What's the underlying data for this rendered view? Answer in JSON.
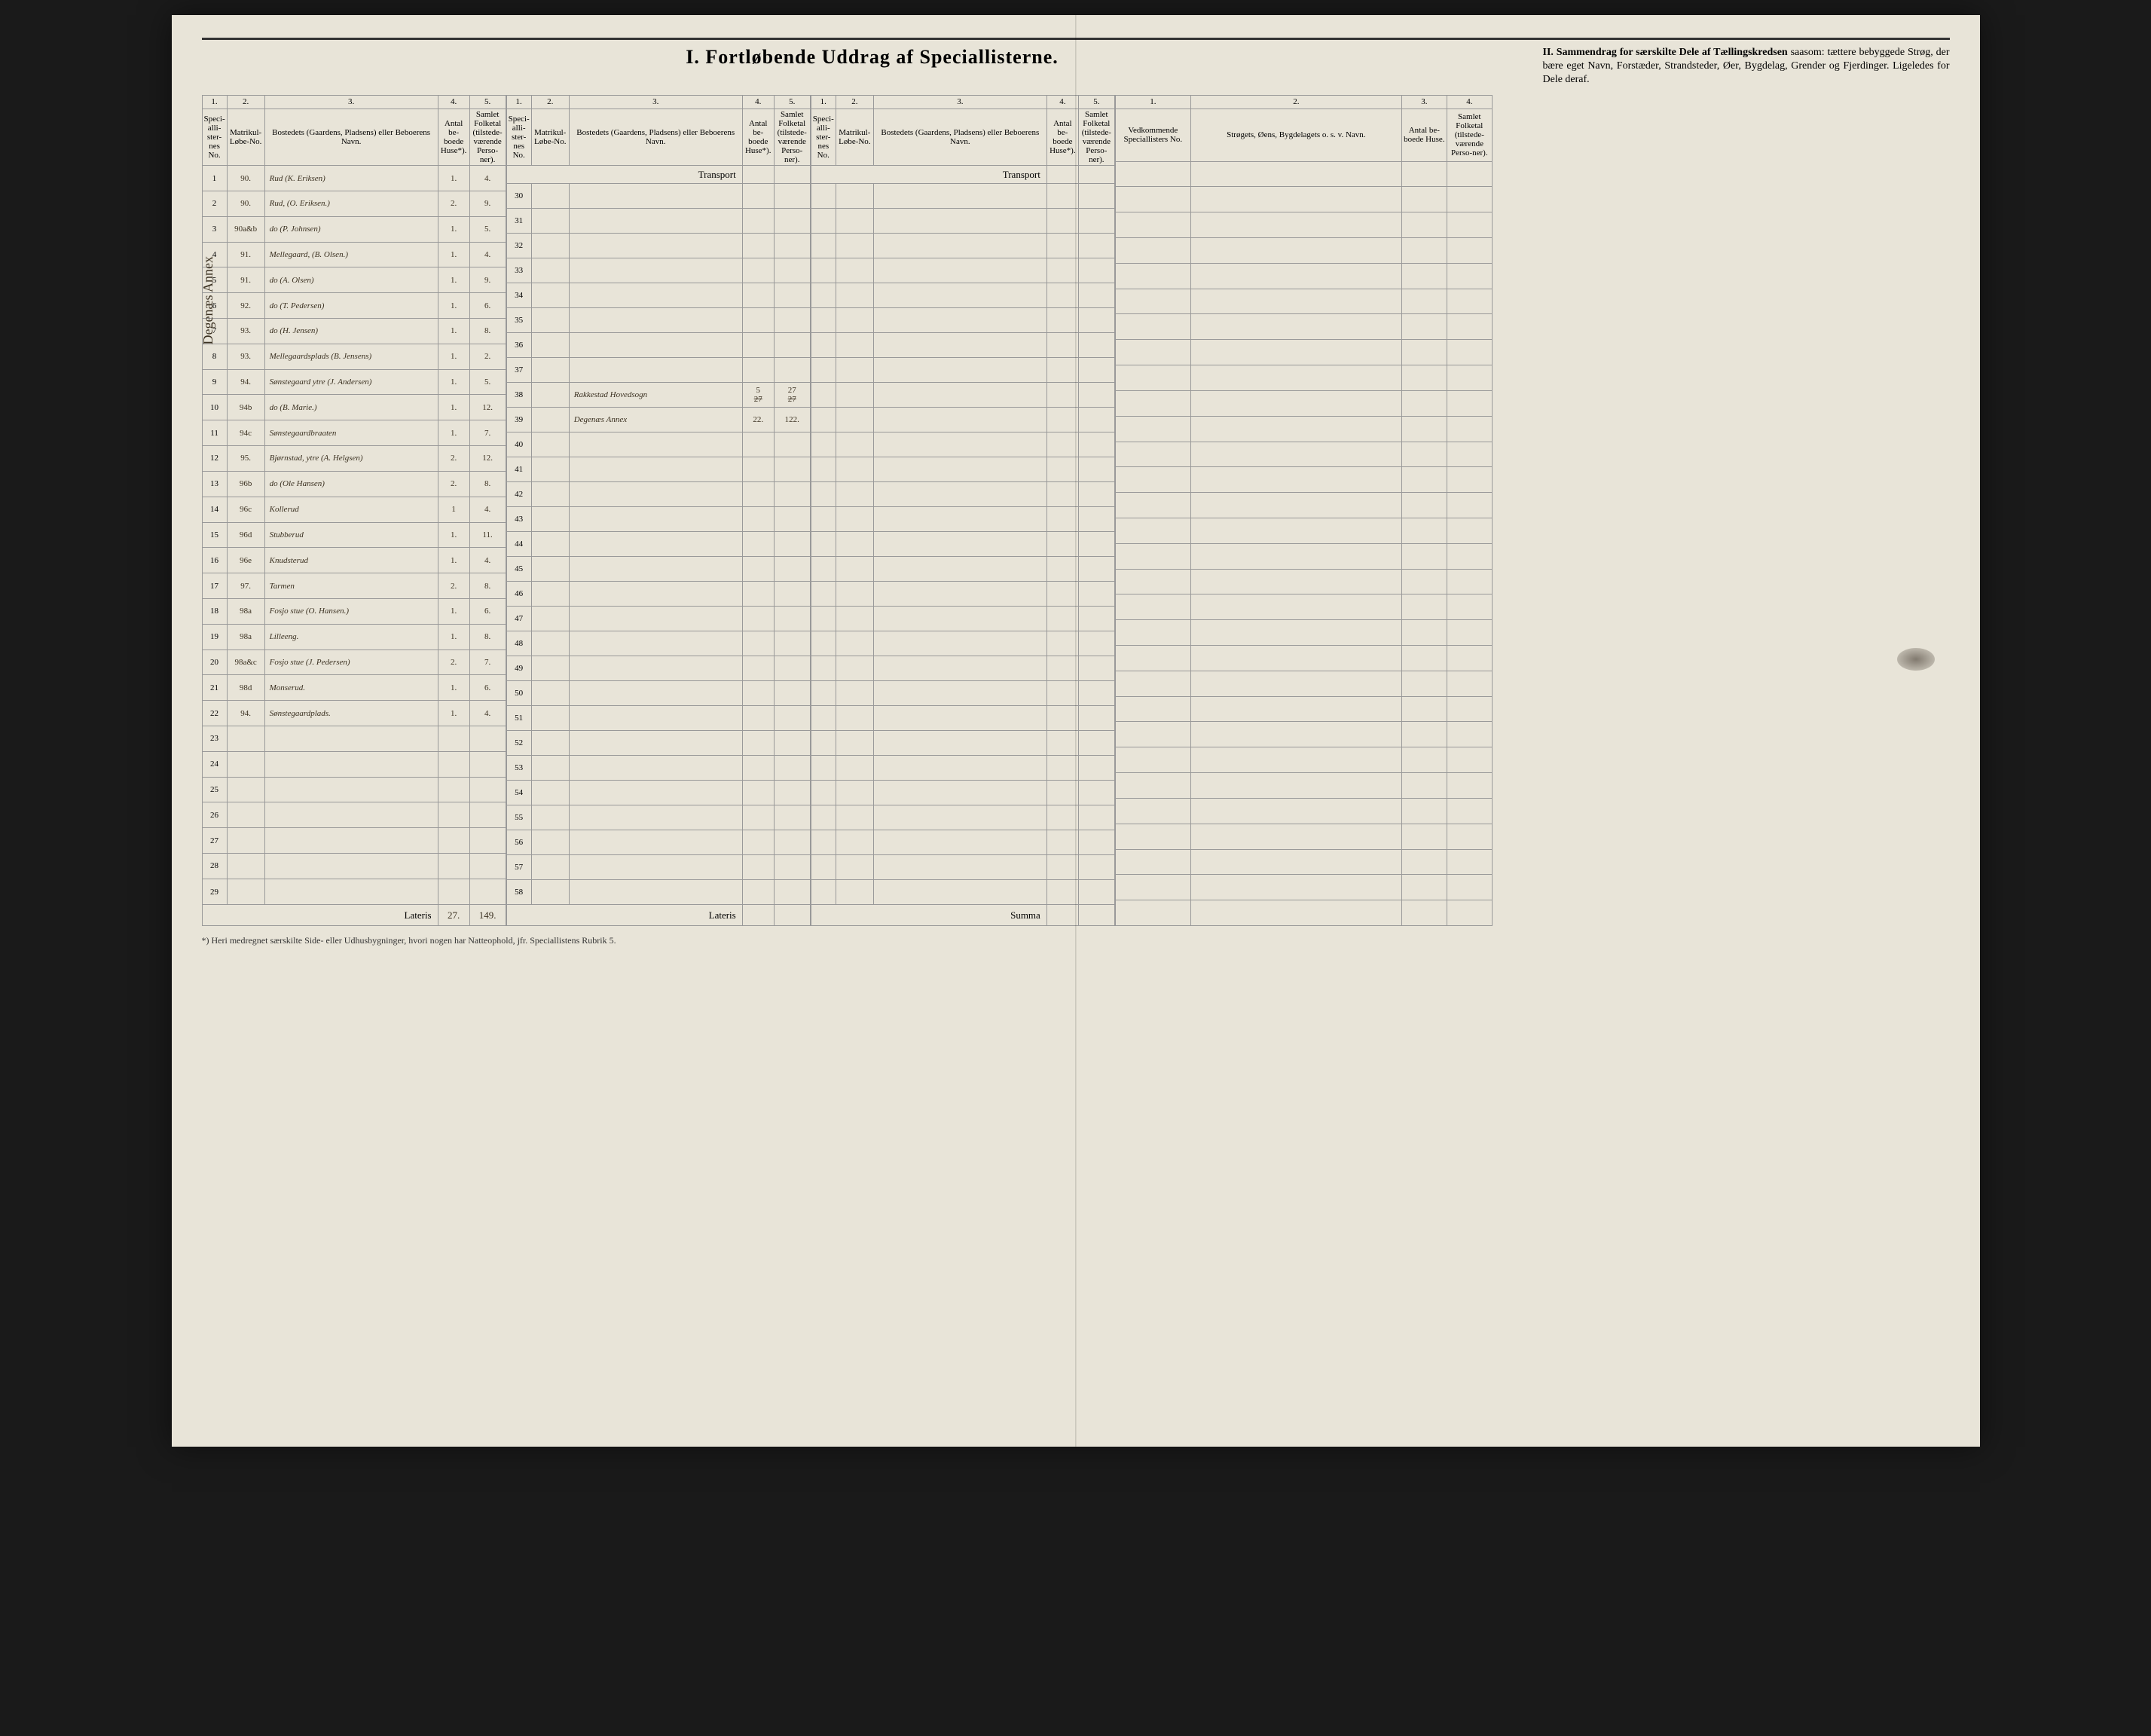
{
  "titles": {
    "main": "I.   Fortløbende Uddrag af   Speciallisterne.",
    "sectionII_bold": "II.   Sammendrag for særskilte Dele af Tællingskredsen",
    "sectionII_rest": " saasom: tættere bebyggede Strøg, der bære eget Navn, Forstæder, Strandsteder, Øer, Bygdelag, Grender og Fjerdinger. Ligeledes for Dele deraf."
  },
  "columnNumbers": [
    "1.",
    "2.",
    "3.",
    "4.",
    "5."
  ],
  "columnHeaders": {
    "c1": "Speci-alli-ster-nes No.",
    "c2": "Matrikul-Løbe-No.",
    "c3": "Bostedets (Gaardens, Pladsens) eller Beboerens Navn.",
    "c4": "Antal be-boede Huse*).",
    "c5": "Samlet Folketal (tilstede-værende Perso-ner)."
  },
  "sectionII_cols": {
    "nums": [
      "1.",
      "2.",
      "3.",
      "4."
    ],
    "h1": "Vedkommende Speciallisters No.",
    "h2": "Strøgets, Øens, Bygdelagets o. s. v. Navn.",
    "h3": "Antal be-boede Huse.",
    "h4": "Samlet Folketal (tilstede-værende Perso-ner)."
  },
  "labels": {
    "transport": "Transport",
    "lateris": "Lateris",
    "summa": "Summa"
  },
  "rowsA": [
    {
      "n": "1",
      "m": "90.",
      "b": "Rud (K. Eriksen)",
      "h": "1.",
      "f": "4."
    },
    {
      "n": "2",
      "m": "90.",
      "b": "Rud, (O. Eriksen.)",
      "h": "2.",
      "f": "9."
    },
    {
      "n": "3",
      "m": "90a&b",
      "b": "do   (P. Johnsen)",
      "h": "1.",
      "f": "5."
    },
    {
      "n": "4",
      "m": "91.",
      "b": "Mellegaard, (B. Olsen.)",
      "h": "1.",
      "f": "4."
    },
    {
      "n": "5",
      "m": "91.",
      "b": "do      (A. Olsen)",
      "h": "1.",
      "f": "9."
    },
    {
      "n": "6",
      "m": "92.",
      "b": "do   (T. Pedersen)",
      "h": "1.",
      "f": "6."
    },
    {
      "n": "7",
      "m": "93.",
      "b": "do  (H. Jensen)",
      "h": "1.",
      "f": "8."
    },
    {
      "n": "8",
      "m": "93.",
      "b": "Mellegaardsplads (B. Jensens)",
      "h": "1.",
      "f": "2."
    },
    {
      "n": "9",
      "m": "94.",
      "b": "Sønstegaard ytre (J. Andersen)",
      "h": "1.",
      "f": "5."
    },
    {
      "n": "10",
      "m": "94b",
      "b": "do     (B. Marie.)",
      "h": "1.",
      "f": "12."
    },
    {
      "n": "11",
      "m": "94c",
      "b": "Sønstegaardbraaten",
      "h": "1.",
      "f": "7."
    },
    {
      "n": "12",
      "m": "95.",
      "b": "Bjørnstad, ytre (A. Helgsen)",
      "h": "2.",
      "f": "12."
    },
    {
      "n": "13",
      "m": "96b",
      "b": "do      (Ole Hansen)",
      "h": "2.",
      "f": "8."
    },
    {
      "n": "14",
      "m": "96c",
      "b": "Kollerud",
      "h": "1",
      "f": "4."
    },
    {
      "n": "15",
      "m": "96d",
      "b": "Stubberud",
      "h": "1.",
      "f": "11."
    },
    {
      "n": "16",
      "m": "96e",
      "b": "Knudsterud",
      "h": "1.",
      "f": "4."
    },
    {
      "n": "17",
      "m": "97.",
      "b": "Tarmen",
      "h": "2.",
      "f": "8."
    },
    {
      "n": "18",
      "m": "98a",
      "b": "Fosjo stue (O. Hansen.)",
      "h": "1.",
      "f": "6."
    },
    {
      "n": "19",
      "m": "98a",
      "b": "Lilleeng.",
      "h": "1.",
      "f": "8."
    },
    {
      "n": "20",
      "m": "98a&c",
      "b": "Fosjo stue (J. Pedersen)",
      "h": "2.",
      "f": "7."
    },
    {
      "n": "21",
      "m": "98d",
      "b": "Monserud.",
      "h": "1.",
      "f": "6."
    },
    {
      "n": "22",
      "m": "94.",
      "b": "Sønstegaardplads.",
      "h": "1.",
      "f": "4."
    },
    {
      "n": "23",
      "m": "",
      "b": "",
      "h": "",
      "f": ""
    },
    {
      "n": "24",
      "m": "",
      "b": "",
      "h": "",
      "f": ""
    },
    {
      "n": "25",
      "m": "",
      "b": "",
      "h": "",
      "f": ""
    },
    {
      "n": "26",
      "m": "",
      "b": "",
      "h": "",
      "f": ""
    },
    {
      "n": "27",
      "m": "",
      "b": "",
      "h": "",
      "f": ""
    },
    {
      "n": "28",
      "m": "",
      "b": "",
      "h": "",
      "f": ""
    },
    {
      "n": "29",
      "m": "",
      "b": "",
      "h": "",
      "f": ""
    }
  ],
  "rowsB_start": 30,
  "rowsB_end": 58,
  "rowsB_entries": {
    "38": {
      "b": "Rakkestad Hovedsogn",
      "h": "5",
      "f": "27",
      "hStrike": "27",
      "fStrike": "27"
    },
    "39": {
      "b": "Degenæs Annex",
      "h": "22.",
      "f": "122."
    }
  },
  "totals": {
    "lateris_h": "27.",
    "lateris_f": "149."
  },
  "footnote": "*) Heri medregnet særskilte Side- eller Udhusbygninger, hvori nogen har Natteophold, jfr. Speciallistens Rubrik 5.",
  "verticalNote": "Degenæs Annex",
  "style": {
    "paperColor": "#e8e4d8",
    "inkColor": "#3a3020",
    "borderColor": "#999999",
    "ruleColor": "#333333"
  }
}
